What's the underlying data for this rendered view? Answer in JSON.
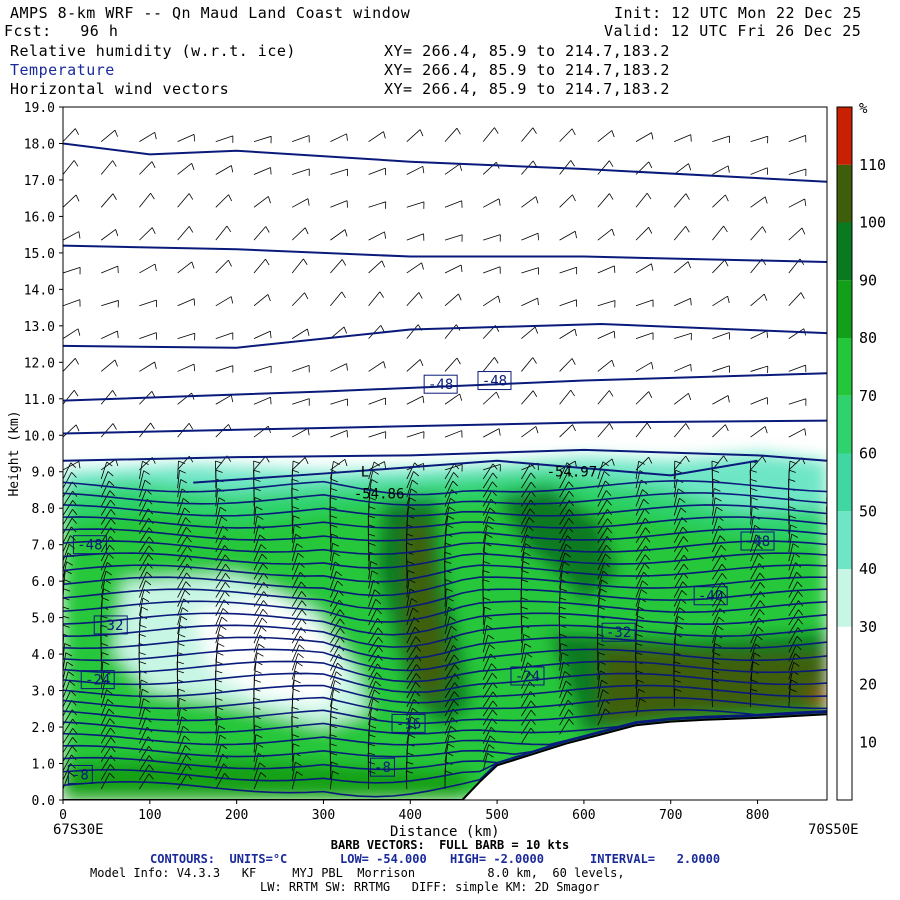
{
  "header": {
    "title": "AMPS 8-km WRF -- Qn Maud Land Coast window",
    "init": "Init: 12 UTC Mon 22 Dec 25",
    "fcst": "Fcst:   96 h",
    "valid": "Valid: 12 UTC Fri 26 Dec 25",
    "field1": "Relative humidity (w.r.t. ice)",
    "field2": "Temperature",
    "field3": "Horizontal wind vectors",
    "xy1": "XY= 266.4, 85.9 to 214.7,183.2",
    "xy2": "XY= 266.4, 85.9 to 214.7,183.2",
    "xy3": "XY= 266.4, 85.9 to 214.7,183.2"
  },
  "chart_data": {
    "type": "heatmap",
    "xlabel": "Distance (km)",
    "ylabel": "Height (km)",
    "xlim": [
      0,
      880
    ],
    "ylim": [
      0,
      19
    ],
    "x_ticks": [
      "0",
      "100",
      "200",
      "300",
      "400",
      "500",
      "600",
      "700",
      "800"
    ],
    "y_ticks": [
      "0.0",
      "1.0",
      "2.0",
      "3.0",
      "4.0",
      "5.0",
      "6.0",
      "7.0",
      "8.0",
      "9.0",
      "10.0",
      "11.0",
      "12.0",
      "13.0",
      "14.0",
      "15.0",
      "16.0",
      "17.0",
      "18.0",
      "19.0"
    ],
    "left_endpoint": "67S30E",
    "right_endpoint": "70S50E",
    "colorbar": {
      "unit": "%",
      "levels": [
        "10",
        "20",
        "30",
        "40",
        "50",
        "60",
        "70",
        "80",
        "90",
        "100",
        "110"
      ],
      "colors": [
        "#ffffff",
        "#ffffff",
        "#ffffff",
        "#c8f6e4",
        "#6ee6c6",
        "#40d8a2",
        "#2ed36e",
        "#25c73a",
        "#12a018",
        "#0a7a20",
        "#3f5e0c",
        "#c82000"
      ]
    },
    "contour_labels": [
      {
        "text": "-48",
        "x": 435,
        "y": 11.4
      },
      {
        "text": "-48",
        "x": 497,
        "y": 11.5
      },
      {
        "text": "-48",
        "x": 31,
        "y": 7.0
      },
      {
        "text": "-48",
        "x": 800,
        "y": 7.1
      },
      {
        "text": "-40",
        "x": 746,
        "y": 5.6
      },
      {
        "text": "-32",
        "x": 55,
        "y": 4.8
      },
      {
        "text": "-32",
        "x": 640,
        "y": 4.6
      },
      {
        "text": "-24",
        "x": 40,
        "y": 3.3
      },
      {
        "text": "-24",
        "x": 535,
        "y": 3.4
      },
      {
        "text": "-16",
        "x": 398,
        "y": 2.1
      },
      {
        "text": "-8",
        "x": 368,
        "y": 0.9
      },
      {
        "text": "-8",
        "x": 20,
        "y": 0.7
      }
    ],
    "extrema": [
      {
        "text": "-54.86",
        "x": 335,
        "y": 8.4
      },
      {
        "text": "-54.97",
        "x": 557,
        "y": 9.0
      },
      {
        "text": "L",
        "x": 343,
        "y": 9.0
      }
    ],
    "terrain": [
      [
        0,
        0
      ],
      [
        460,
        0
      ],
      [
        480,
        0.5
      ],
      [
        500,
        0.95
      ],
      [
        540,
        1.25
      ],
      [
        580,
        1.55
      ],
      [
        620,
        1.8
      ],
      [
        660,
        2.05
      ],
      [
        700,
        2.15
      ],
      [
        740,
        2.2
      ],
      [
        800,
        2.25
      ],
      [
        880,
        2.35
      ]
    ],
    "temperature_contours": {
      "low": "-54.000",
      "high": "-2.0000",
      "interval": "2.0000"
    }
  },
  "footer": {
    "barb": "BARB VECTORS:  FULL BARB = 10 kts",
    "contours_prefix": "CONTOURS:  UNITS=°C",
    "low": "LOW= -54.000",
    "high": "HIGH= -2.0000",
    "interval": "INTERVAL=   2.0000",
    "model1": "Model Info: V4.3.3   KF     MYJ PBL  Morrison          8.0 km,  60 levels,",
    "model2": "LW: RRTM SW: RRTMG   DIFF: simple KM: 2D Smagor"
  },
  "colors": {
    "contour": "#0a1a7a",
    "heading_blue": "#1a2a9a"
  }
}
